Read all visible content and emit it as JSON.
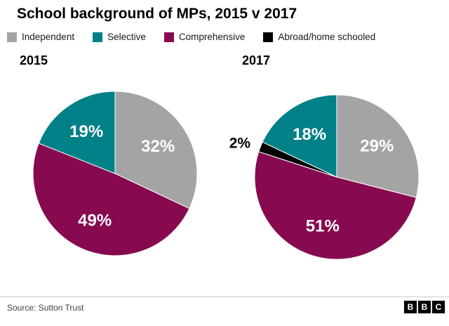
{
  "title": "School background of MPs, 2015 v 2017",
  "legend": [
    {
      "label": "Independent",
      "color": "#a4a4a4"
    },
    {
      "label": "Selective",
      "color": "#008087"
    },
    {
      "label": "Comprehensive",
      "color": "#870a50"
    },
    {
      "label": "Abroad/home schooled",
      "color": "#000000"
    }
  ],
  "chart_data": [
    {
      "type": "pie",
      "title": "2015",
      "start_angle_deg": 0,
      "direction": "clockwise",
      "slices": [
        {
          "label": "Independent",
          "value": 32,
          "color": "#a4a4a4",
          "label_position": "inside"
        },
        {
          "label": "Comprehensive",
          "value": 49,
          "color": "#870a50",
          "label_position": "inside"
        },
        {
          "label": "Selective",
          "value": 19,
          "color": "#008087",
          "label_position": "inside"
        }
      ]
    },
    {
      "type": "pie",
      "title": "2017",
      "start_angle_deg": 0,
      "direction": "clockwise",
      "slices": [
        {
          "label": "Independent",
          "value": 29,
          "color": "#a4a4a4",
          "label_position": "inside"
        },
        {
          "label": "Comprehensive",
          "value": 51,
          "color": "#870a50",
          "label_position": "inside"
        },
        {
          "label": "Abroad/home schooled",
          "value": 2,
          "color": "#000000",
          "label_position": "outside"
        },
        {
          "label": "Selective",
          "value": 18,
          "color": "#008087",
          "label_position": "inside"
        }
      ]
    }
  ],
  "footer": {
    "source": "Source: Sutton Trust",
    "logo": [
      "B",
      "B",
      "C"
    ]
  },
  "colors": {
    "independent": "#a4a4a4",
    "selective": "#008087",
    "comprehensive": "#870a50",
    "abroad_home_schooled": "#000000",
    "label_inside": "#ffffff",
    "label_outside": "#000000"
  }
}
